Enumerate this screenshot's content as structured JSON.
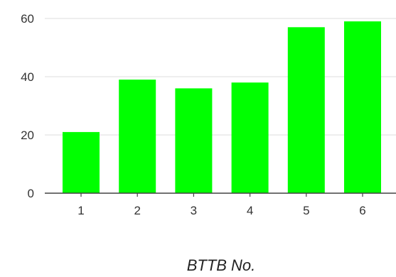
{
  "chart_data": {
    "type": "bar",
    "categories": [
      "1",
      "2",
      "3",
      "4",
      "5",
      "6"
    ],
    "values": [
      21,
      39,
      36,
      38,
      57,
      59
    ],
    "xlabel": "BTTB No.",
    "ylabel": "",
    "ylim": [
      0,
      60
    ],
    "yticks": [
      "0",
      "20",
      "40",
      "60"
    ],
    "grid": true,
    "colors": {
      "bar": "#00ff00",
      "grid": "#e3e3e3",
      "axis": "#444444"
    }
  }
}
